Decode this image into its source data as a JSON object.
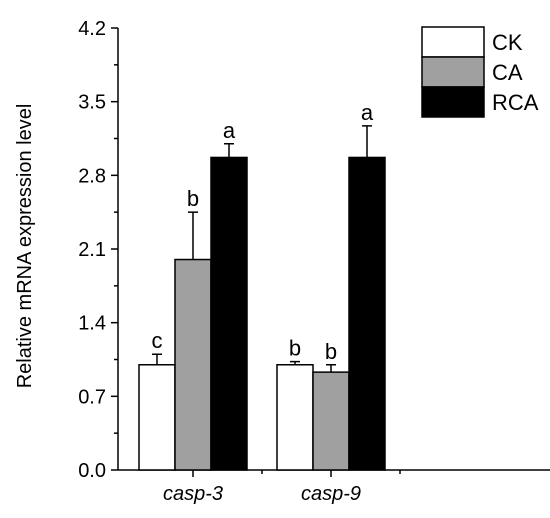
{
  "chart_data": {
    "type": "bar",
    "ylabel": "Relative mRNA expression level",
    "xlabel": "",
    "ylim": [
      0,
      4.2
    ],
    "yticks": [
      "0.0",
      "0.7",
      "1.4",
      "2.1",
      "2.8",
      "3.5",
      "4.2"
    ],
    "categories": [
      "casp-3",
      "casp-9"
    ],
    "legend_position": "top-right",
    "series": [
      {
        "name": "CK",
        "color": "#ffffff",
        "values": [
          1.0,
          1.0
        ],
        "errors": [
          0.1,
          0.03
        ],
        "labels": [
          "c",
          "b"
        ]
      },
      {
        "name": "CA",
        "color": "#a0a0a0",
        "values": [
          2.0,
          0.93
        ],
        "errors": [
          0.45,
          0.07
        ],
        "labels": [
          "b",
          "b"
        ]
      },
      {
        "name": "RCA",
        "color": "#000000",
        "values": [
          2.97,
          2.97
        ],
        "errors": [
          0.13,
          0.3
        ],
        "labels": [
          "a",
          "a"
        ]
      }
    ]
  }
}
